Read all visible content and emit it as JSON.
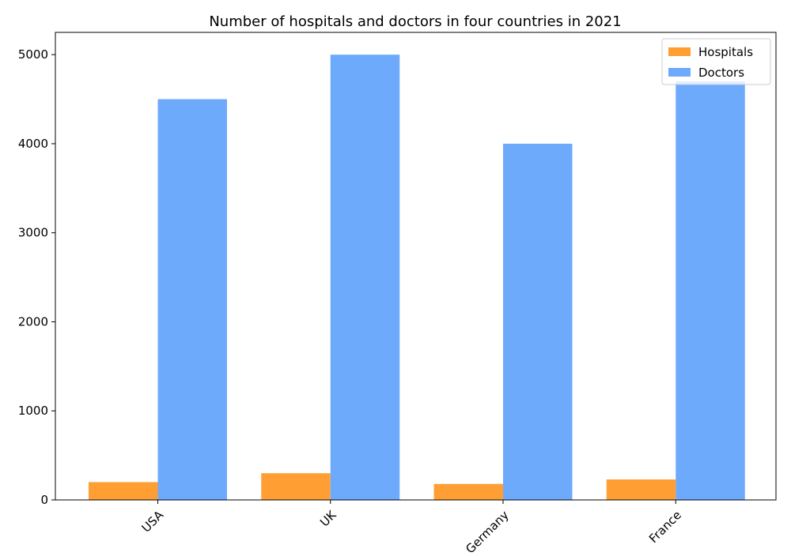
{
  "chart_data": {
    "type": "bar",
    "title": "Number of hospitals and doctors in four countries in 2021",
    "xlabel": "",
    "ylabel": "",
    "categories": [
      "USA",
      "UK",
      "Germany",
      "France"
    ],
    "series": [
      {
        "name": "Hospitals",
        "values": [
          200,
          300,
          180,
          230
        ],
        "color": "#ff9f33"
      },
      {
        "name": "Doctors",
        "values": [
          4500,
          5000,
          4000,
          4700
        ],
        "color": "#6eaafc"
      }
    ],
    "ylim": [
      0,
      5250
    ],
    "yticks": [
      0,
      1000,
      2000,
      3000,
      4000,
      5000
    ],
    "grid": false,
    "legend_position": "top-right",
    "x_tick_rotation": -45
  }
}
